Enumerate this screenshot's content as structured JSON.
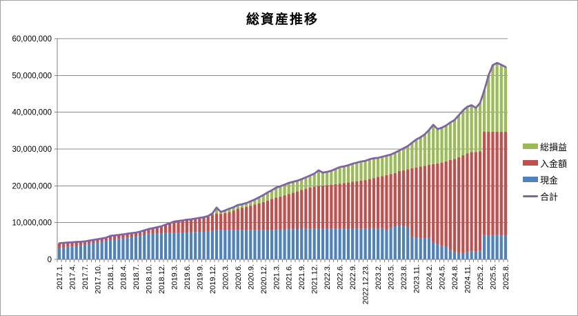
{
  "title": "総資産推移",
  "legend": {
    "items": [
      {
        "label": "総損益",
        "color": "#9BBB59",
        "shape": "bar"
      },
      {
        "label": "入金額",
        "color": "#C0504D",
        "shape": "bar"
      },
      {
        "label": "現金",
        "color": "#4F81BD",
        "shape": "bar"
      },
      {
        "label": "合計",
        "color": "#8064A2",
        "shape": "line"
      }
    ]
  },
  "chart_data": {
    "type": "stacked-bar-with-line",
    "title": "総資産推移",
    "unit": "JPY",
    "value_scale": 1000000,
    "grid_color": "#888888",
    "axis_color": "#808080",
    "y_axis": {
      "min": 0,
      "max": 60,
      "tick_values": [
        0,
        10,
        20,
        30,
        40,
        50,
        60
      ],
      "tick_labels": [
        "0",
        "10,000,000",
        "20,000,000",
        "30,000,000",
        "40,000,000",
        "50,000,000",
        "60,000,000"
      ]
    },
    "x_axis": {
      "note": "106 monthly categories; a label is shown on every 3rd category",
      "label_interval": 3,
      "labels": [
        "2017.1.",
        "2017.4.",
        "2017.7.",
        "2017.10.",
        "2018.1.",
        "2018.4.",
        "2018.7.",
        "2018.10.",
        "2018.12.",
        "2019.3.",
        "2019.6.",
        "2019.9.",
        "2019.12.",
        "2020.3.",
        "2020.6.",
        "2020.9.",
        "2020.12.",
        "2021.3.",
        "2021.6.",
        "2021.9.",
        "2021.12.",
        "2022.3.",
        "2022.6.",
        "2022.9.",
        "2022.12.23.",
        "2023.2.",
        "2023.5.",
        "2023.8.",
        "2023.11.",
        "2024.2.",
        "2024.5.",
        "2024.8.",
        "2024.11.",
        "2025.2.",
        "2025.5.",
        "2025.8."
      ]
    },
    "series": [
      {
        "name": "現金",
        "type": "bar",
        "color": "#4F81BD",
        "values": [
          3.1,
          3.25,
          3.4,
          3.5,
          3.65,
          3.8,
          4.0,
          4.2,
          4.4,
          4.6,
          4.8,
          5.0,
          5.3,
          5.45,
          5.6,
          5.8,
          5.95,
          6.1,
          6.3,
          6.5,
          6.75,
          7.0,
          7.05,
          7.05,
          7.1,
          7.15,
          7.15,
          7.2,
          7.2,
          7.3,
          7.4,
          7.4,
          7.45,
          7.5,
          7.6,
          7.7,
          7.8,
          7.9,
          7.9,
          7.95,
          8.0,
          8.0,
          8.0,
          8.0,
          8.0,
          8.0,
          8.0,
          8.0,
          8.0,
          8.05,
          8.05,
          8.1,
          8.15,
          8.15,
          8.2,
          8.2,
          8.25,
          8.25,
          8.3,
          8.3,
          8.3,
          8.3,
          8.3,
          8.3,
          8.3,
          8.3,
          8.3,
          8.3,
          8.35,
          8.35,
          8.4,
          8.4,
          8.4,
          8.45,
          8.5,
          8.4,
          8.5,
          7.9,
          8.6,
          9.0,
          9.2,
          9.1,
          8.8,
          6.1,
          6.0,
          5.8,
          5.8,
          5.9,
          4.7,
          4.1,
          3.6,
          3.4,
          2.5,
          2.0,
          1.8,
          1.7,
          2.0,
          2.2,
          2.1,
          2.4,
          6.6,
          6.5,
          6.6,
          6.7,
          6.5,
          6.6
        ]
      },
      {
        "name": "入金額",
        "type": "bar",
        "color": "#C0504D",
        "values": [
          1.2,
          1.15,
          1.1,
          1.1,
          1.05,
          0.95,
          0.85,
          0.8,
          0.8,
          0.8,
          0.8,
          0.8,
          1.05,
          1.05,
          1.0,
          0.95,
          0.95,
          1.0,
          0.95,
          1.0,
          1.05,
          1.2,
          1.4,
          1.65,
          1.85,
          2.25,
          2.65,
          3.05,
          3.2,
          3.25,
          3.3,
          3.45,
          3.6,
          3.7,
          3.85,
          4.0,
          4.4,
          4.6,
          4.5,
          4.65,
          4.9,
          5.3,
          5.8,
          6.05,
          6.3,
          6.6,
          6.9,
          7.25,
          7.6,
          7.95,
          8.35,
          8.7,
          8.95,
          9.3,
          9.6,
          9.95,
          10.25,
          10.65,
          10.9,
          11.2,
          11.5,
          11.7,
          11.8,
          11.9,
          12.0,
          12.15,
          12.3,
          12.45,
          12.55,
          12.75,
          12.85,
          13.0,
          13.2,
          13.4,
          13.6,
          14.0,
          14.15,
          15.0,
          14.6,
          14.45,
          14.8,
          15.1,
          15.7,
          18.65,
          19.0,
          19.4,
          19.65,
          19.8,
          21.2,
          22.0,
          22.7,
          23.25,
          24.5,
          25.3,
          26.0,
          26.6,
          26.8,
          27.0,
          27.1,
          27.0,
          28.1,
          28.2,
          28.1,
          28.0,
          28.2,
          28.1
        ]
      },
      {
        "name": "総損益",
        "type": "bar",
        "color": "#9BBB59",
        "values": [
          0.1,
          0.1,
          0.1,
          0.05,
          0.05,
          0.05,
          0.05,
          0.1,
          0.1,
          0.1,
          0.1,
          0.1,
          0.05,
          0.05,
          0.05,
          0.05,
          0.1,
          0.05,
          0.05,
          0.05,
          0.1,
          0.05,
          0.05,
          0.05,
          0.05,
          0.05,
          0.05,
          0.05,
          0.05,
          0.05,
          0.1,
          0.05,
          0.05,
          0.1,
          0.05,
          0.1,
          0.3,
          1.6,
          0.5,
          0.7,
          0.9,
          0.9,
          1.0,
          0.95,
          1.0,
          1.2,
          1.4,
          1.65,
          1.9,
          2.2,
          2.4,
          2.7,
          2.8,
          2.85,
          3.0,
          2.95,
          2.9,
          2.9,
          3.1,
          3.3,
          3.5,
          4.2,
          3.5,
          3.6,
          3.8,
          4.15,
          4.5,
          4.55,
          4.7,
          4.9,
          5.05,
          5.2,
          5.2,
          5.35,
          5.4,
          5.2,
          5.25,
          5.3,
          5.3,
          5.55,
          5.6,
          6.0,
          6.3,
          6.95,
          7.6,
          8.0,
          8.55,
          9.5,
          10.7,
          9.3,
          9.5,
          9.75,
          10.2,
          10.6,
          11.4,
          12.2,
          12.7,
          12.7,
          12.0,
          13.1,
          11.2,
          15.3,
          18.1,
          18.7,
          18.2,
          17.6
        ]
      },
      {
        "name": "合計",
        "type": "line",
        "color": "#8064A2",
        "values": [
          4.4,
          4.5,
          4.6,
          4.65,
          4.75,
          4.8,
          4.9,
          5.1,
          5.3,
          5.5,
          5.7,
          5.9,
          6.4,
          6.55,
          6.65,
          6.8,
          7.0,
          7.15,
          7.3,
          7.55,
          7.9,
          8.25,
          8.5,
          8.75,
          9.0,
          9.45,
          9.85,
          10.3,
          10.45,
          10.6,
          10.8,
          10.9,
          11.1,
          11.3,
          11.5,
          11.8,
          12.5,
          14.1,
          12.9,
          13.3,
          13.8,
          14.2,
          14.8,
          15.0,
          15.3,
          15.8,
          16.3,
          16.9,
          17.5,
          18.2,
          18.8,
          19.5,
          19.9,
          20.3,
          20.8,
          21.1,
          21.4,
          21.8,
          22.3,
          22.8,
          23.3,
          24.2,
          23.6,
          23.8,
          24.1,
          24.6,
          25.1,
          25.3,
          25.6,
          26.0,
          26.3,
          26.6,
          26.8,
          27.2,
          27.5,
          27.6,
          27.9,
          28.2,
          28.5,
          29.0,
          29.6,
          30.2,
          30.8,
          31.7,
          32.6,
          33.2,
          34.0,
          35.2,
          36.6,
          35.4,
          35.8,
          36.4,
          37.2,
          37.9,
          39.2,
          40.5,
          41.5,
          41.9,
          41.2,
          42.5,
          45.9,
          50.0,
          52.8,
          53.4,
          52.9,
          52.3
        ]
      }
    ]
  }
}
